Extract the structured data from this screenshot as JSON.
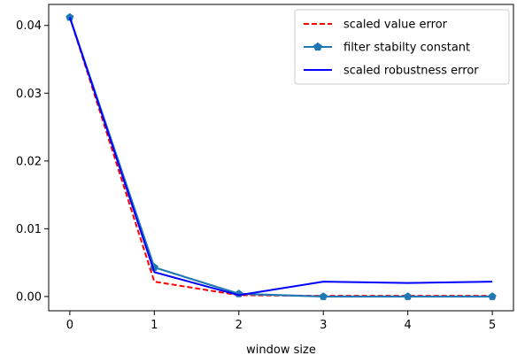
{
  "chart_data": {
    "type": "line",
    "xlabel": "window size",
    "ylabel": "",
    "title": "",
    "x": [
      0,
      1,
      2,
      3,
      4,
      5
    ],
    "xlim": [
      -0.25,
      5.25
    ],
    "ylim": [
      -0.0021,
      0.0431
    ],
    "xticks": [
      0,
      1,
      2,
      3,
      4,
      5
    ],
    "xtick_labels": [
      "0",
      "1",
      "2",
      "3",
      "4",
      "5"
    ],
    "yticks": [
      0.0,
      0.01,
      0.02,
      0.03,
      0.04
    ],
    "ytick_labels": [
      "0.00",
      "0.01",
      "0.02",
      "0.03",
      "0.04"
    ],
    "grid": false,
    "legend_position": "top-right",
    "series": [
      {
        "name": "scaled value error",
        "values": [
          0.0412,
          0.0022,
          0.0002,
          0.0001,
          0.0001,
          0.0001
        ],
        "color": "#ff0000",
        "style": "dashed",
        "marker": "none"
      },
      {
        "name": "filter stabilty constant",
        "values": [
          0.0412,
          0.0043,
          0.0004,
          0.0,
          0.0,
          0.0
        ],
        "color": "#1f77b4",
        "style": "solid",
        "marker": "pentagon"
      },
      {
        "name": "scaled robustness error",
        "values": [
          0.0412,
          0.0036,
          0.0002,
          0.0022,
          0.002,
          0.0022
        ],
        "color": "#0000ff",
        "style": "solid",
        "marker": "none"
      }
    ]
  }
}
